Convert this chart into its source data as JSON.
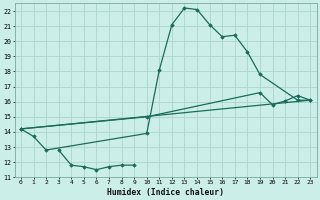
{
  "title": "",
  "xlabel": "Humidex (Indice chaleur)",
  "bg_color": "#cceee8",
  "grid_color": "#b0d8d0",
  "line_color": "#1a6b5a",
  "xlim": [
    -0.5,
    23.5
  ],
  "ylim": [
    11,
    22.5
  ],
  "xticks": [
    0,
    1,
    2,
    3,
    4,
    5,
    6,
    7,
    8,
    9,
    10,
    11,
    12,
    13,
    14,
    15,
    16,
    17,
    18,
    19,
    20,
    21,
    22,
    23
  ],
  "yticks": [
    11,
    12,
    13,
    14,
    15,
    16,
    17,
    18,
    19,
    20,
    21,
    22
  ],
  "line1_x": [
    0,
    1,
    2,
    10,
    11,
    12,
    13,
    14,
    15,
    16,
    17,
    18,
    19,
    22,
    23
  ],
  "line1_y": [
    14.2,
    13.7,
    12.8,
    13.9,
    18.1,
    21.1,
    22.2,
    22.1,
    21.1,
    20.3,
    20.4,
    19.3,
    17.8,
    16.1,
    16.1
  ],
  "line2_x": [
    0,
    10,
    19,
    20,
    21,
    22,
    23
  ],
  "line2_y": [
    14.2,
    15.0,
    16.6,
    15.8,
    16.05,
    16.4,
    16.1
  ],
  "line3_x": [
    0,
    23
  ],
  "line3_y": [
    14.2,
    16.1
  ],
  "line4_x": [
    3,
    4,
    5,
    6,
    7,
    8,
    9
  ],
  "line4_y": [
    12.8,
    11.8,
    11.7,
    11.5,
    11.7,
    11.8,
    11.8
  ],
  "lw": 0.9
}
